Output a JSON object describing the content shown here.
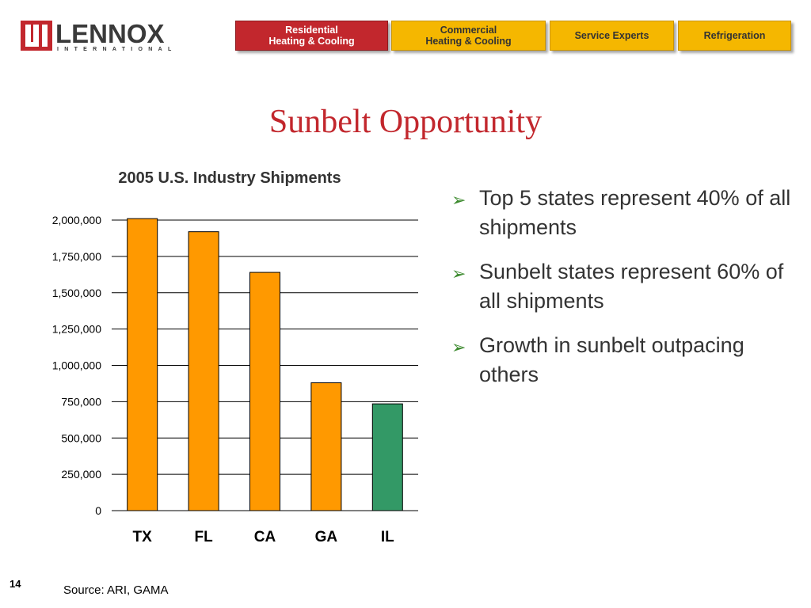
{
  "logo": {
    "wordmark": "LENNOX",
    "subtext": "INTERNATIONAL",
    "color": "#c2272d"
  },
  "nav": {
    "tabs": [
      {
        "label": "Residential\nHeating & Cooling",
        "active": true
      },
      {
        "label": "Commercial\nHeating & Cooling",
        "active": false
      },
      {
        "label": "Service Experts",
        "active": false
      },
      {
        "label": "Refrigeration",
        "active": false
      }
    ]
  },
  "slide": {
    "title": "Sunbelt Opportunity",
    "bullets": [
      "Top 5 states represent 40% of all shipments",
      "Sunbelt states represent 60% of all shipments",
      "Growth in sunbelt outpacing others"
    ],
    "page_number": "14",
    "source": "Source:  ARI, GAMA"
  },
  "colors": {
    "accent_red": "#c2272d",
    "tab_yellow": "#f5b700",
    "bar_orange": "#ff9900",
    "bar_green": "#339966",
    "bullet_green": "#3c8a2e"
  },
  "chart_data": {
    "type": "bar",
    "title": "2005 U.S. Industry Shipments",
    "categories": [
      "TX",
      "FL",
      "CA",
      "GA",
      "IL"
    ],
    "values": [
      2010000,
      1920000,
      1640000,
      880000,
      735000
    ],
    "bar_colors": [
      "#ff9900",
      "#ff9900",
      "#ff9900",
      "#ff9900",
      "#339966"
    ],
    "ylim": [
      0,
      2000000
    ],
    "yticks": [
      0,
      250000,
      500000,
      750000,
      1000000,
      1250000,
      1500000,
      1750000,
      2000000
    ],
    "ytick_labels": [
      "0",
      "250,000",
      "500,000",
      "750,000",
      "1,000,000",
      "1,250,000",
      "1,500,000",
      "1,750,000",
      "2,000,000"
    ],
    "grid": true,
    "xlabel": "",
    "ylabel": ""
  }
}
